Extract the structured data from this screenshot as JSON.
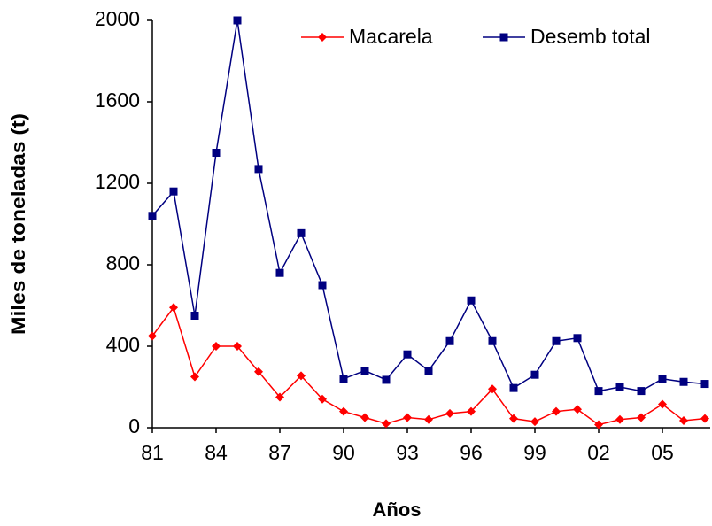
{
  "chart_data": {
    "type": "line",
    "x_label": "Años",
    "y_label": "Miles de toneladas (t)",
    "categories": [
      "81",
      null,
      null,
      "84",
      null,
      null,
      "87",
      null,
      null,
      "90",
      null,
      null,
      "93",
      null,
      null,
      "96",
      null,
      null,
      "99",
      null,
      null,
      "02",
      null,
      null,
      "05",
      null,
      null
    ],
    "series": [
      {
        "name": "Macarela",
        "color": "#ff0000",
        "marker": "diamond",
        "values": [
          450,
          590,
          250,
          400,
          400,
          275,
          150,
          255,
          140,
          80,
          50,
          20,
          50,
          40,
          70,
          80,
          190,
          45,
          30,
          80,
          90,
          15,
          40,
          50,
          115,
          35,
          45
        ]
      },
      {
        "name": "Desemb total",
        "color": "#000080",
        "marker": "square",
        "values": [
          1040,
          1160,
          550,
          1350,
          2000,
          1270,
          760,
          955,
          700,
          240,
          280,
          235,
          360,
          280,
          425,
          625,
          425,
          195,
          260,
          425,
          440,
          180,
          200,
          180,
          240,
          225,
          215
        ]
      }
    ],
    "ylim": [
      0,
      2000
    ],
    "yticks": [
      0,
      400,
      800,
      1200,
      1600,
      2000
    ],
    "grid": false,
    "legend": "top-right"
  }
}
